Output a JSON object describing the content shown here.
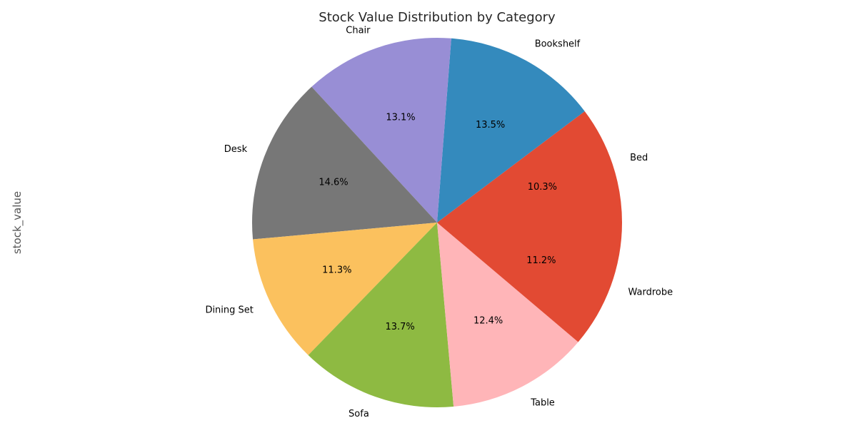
{
  "chart_data": {
    "type": "pie",
    "title": "Stock Value Distribution by Category",
    "ylabel": "stock_value",
    "start_angle_deg": 0,
    "direction": "counterclockwise",
    "slices": [
      {
        "label": "Bed",
        "value": 10.3,
        "pct_label": "10.3%",
        "color": "#E24A33"
      },
      {
        "label": "Bookshelf",
        "value": 13.5,
        "pct_label": "13.5%",
        "color": "#348ABD"
      },
      {
        "label": "Chair",
        "value": 13.1,
        "pct_label": "13.1%",
        "color": "#988ED5"
      },
      {
        "label": "Desk",
        "value": 14.6,
        "pct_label": "14.6%",
        "color": "#777777"
      },
      {
        "label": "Dining Set",
        "value": 11.3,
        "pct_label": "11.3%",
        "color": "#FBC15E"
      },
      {
        "label": "Sofa",
        "value": 13.7,
        "pct_label": "13.7%",
        "color": "#8EBA42"
      },
      {
        "label": "Table",
        "value": 12.4,
        "pct_label": "12.4%",
        "color": "#FFB5B8"
      },
      {
        "label": "Wardrobe",
        "value": 11.2,
        "pct_label": "11.2%",
        "color": "#E24A33"
      }
    ]
  }
}
